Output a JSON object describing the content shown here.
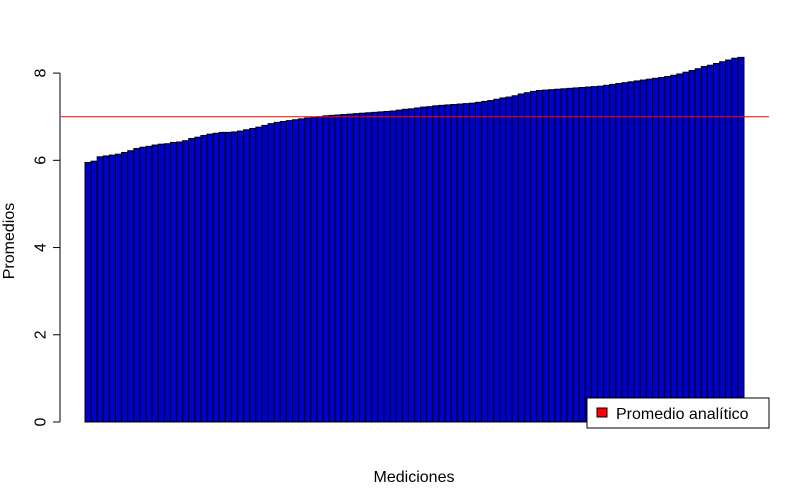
{
  "chart_data": {
    "type": "bar",
    "xlabel": "Mediciones",
    "ylabel": "Promedios",
    "ylim": [
      0,
      8.3
    ],
    "yticks": [
      "0",
      "2",
      "4",
      "6",
      "8"
    ],
    "bar_color": "#0000cc",
    "bar_border_color": "#000000",
    "reference_line": {
      "value": 7.0,
      "color": "#ff0000"
    },
    "legend": {
      "placement": "bottom-right",
      "label": "Promedio analítico",
      "swatch_color": "#ff0000"
    },
    "values": [
      5.95,
      5.98,
      6.08,
      6.1,
      6.12,
      6.14,
      6.18,
      6.22,
      6.27,
      6.3,
      6.32,
      6.35,
      6.37,
      6.38,
      6.41,
      6.42,
      6.45,
      6.5,
      6.53,
      6.57,
      6.6,
      6.62,
      6.64,
      6.64,
      6.65,
      6.67,
      6.7,
      6.73,
      6.76,
      6.8,
      6.84,
      6.87,
      6.89,
      6.91,
      6.93,
      6.95,
      6.97,
      6.99,
      7.0,
      7.02,
      7.03,
      7.04,
      7.05,
      7.06,
      7.07,
      7.08,
      7.09,
      7.1,
      7.11,
      7.12,
      7.13,
      7.15,
      7.17,
      7.18,
      7.2,
      7.22,
      7.23,
      7.25,
      7.26,
      7.27,
      7.28,
      7.29,
      7.3,
      7.31,
      7.33,
      7.35,
      7.37,
      7.4,
      7.43,
      7.45,
      7.48,
      7.52,
      7.55,
      7.58,
      7.6,
      7.61,
      7.62,
      7.63,
      7.64,
      7.65,
      7.66,
      7.67,
      7.68,
      7.69,
      7.7,
      7.72,
      7.74,
      7.76,
      7.78,
      7.8,
      7.82,
      7.84,
      7.86,
      7.88,
      7.9,
      7.92,
      7.95,
      7.98,
      8.02,
      8.06,
      8.1,
      8.15,
      8.18,
      8.22,
      8.26,
      8.3,
      8.34,
      8.36
    ]
  }
}
